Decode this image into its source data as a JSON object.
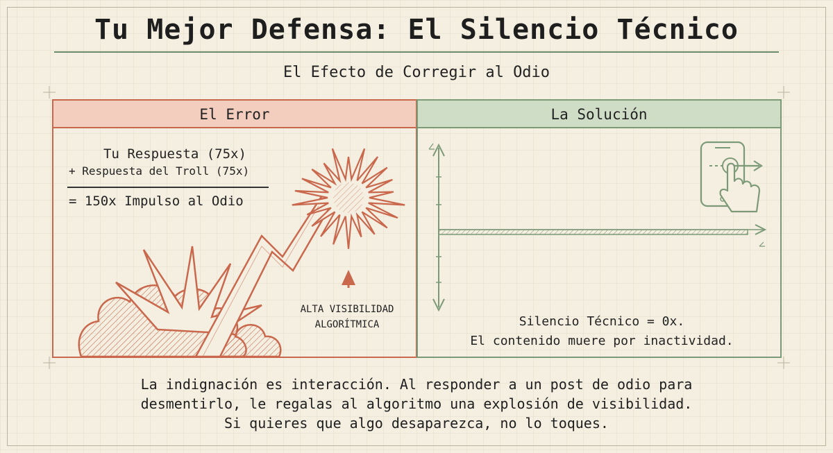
{
  "title": "Tu Mejor Defensa: El Silencio Técnico",
  "subtitle": "El Efecto de Corregir al Odio",
  "error_panel": {
    "header": "El Error",
    "equation": {
      "line1": "Tu Respuesta  (75x)",
      "line2": "+ Respuesta del Troll (75x)",
      "result": "= 150x Impulso al Odio"
    },
    "annotation_line1": "ALTA VISIBILIDAD",
    "annotation_line2": "ALGORÍTMICA"
  },
  "solution_panel": {
    "header": "La Solución",
    "caption_line1": "Silencio Técnico = 0x.",
    "caption_line2": "El contenido muere por inactividad."
  },
  "body": {
    "line1": "La indignación es interacción. Al responder a un post de odio para",
    "line2": "desmentirlo, le regalas al algoritmo una explosión de visibilidad.",
    "line3": "Si quieres que algo desaparezca, no lo toques."
  },
  "colors": {
    "error_accent": "#c9684d",
    "error_fill": "#f3cdbd",
    "solution_accent": "#7d9a78",
    "solution_fill": "#cfdcc6",
    "background": "#f4efe1"
  },
  "icons": [
    "explosion-icon",
    "spark-burst-icon",
    "up-arrow-icon",
    "phone-swipe-icon",
    "flat-line-chart-icon"
  ]
}
